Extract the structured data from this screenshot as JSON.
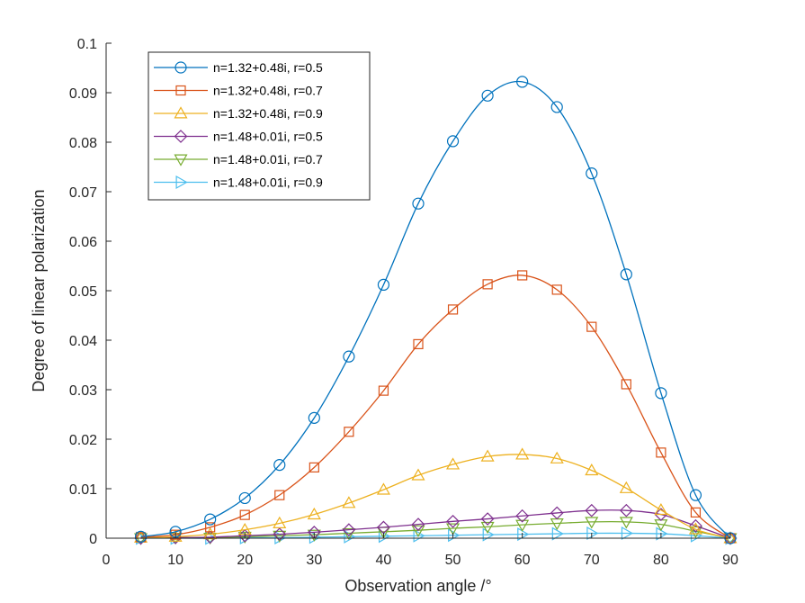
{
  "chart_data": {
    "type": "line",
    "xlabel": "Observation angle /°",
    "ylabel": "Degree of linear polarization",
    "xlim": [
      0,
      90
    ],
    "ylim": [
      0,
      0.1
    ],
    "xticks": [
      0,
      10,
      20,
      30,
      40,
      50,
      60,
      70,
      80,
      90
    ],
    "yticks": [
      0,
      0.01,
      0.02,
      0.03,
      0.04,
      0.05,
      0.06,
      0.07,
      0.08,
      0.09,
      0.1
    ],
    "xtick_labels": [
      "0",
      "10",
      "20",
      "30",
      "40",
      "50",
      "60",
      "70",
      "80",
      "90"
    ],
    "ytick_labels": [
      "0",
      "0.01",
      "0.02",
      "0.03",
      "0.04",
      "0.05",
      "0.06",
      "0.07",
      "0.08",
      "0.09",
      "0.1"
    ],
    "grid": false,
    "legend_position": "top-left",
    "x": [
      5,
      10,
      15,
      20,
      25,
      30,
      35,
      40,
      45,
      50,
      55,
      60,
      65,
      70,
      75,
      80,
      85,
      90
    ],
    "series": [
      {
        "name": "n=1.32+0.48i, r=0.5",
        "color": "#0072BD",
        "marker": "circle",
        "values": [
          0.0003,
          0.0013,
          0.0038,
          0.0081,
          0.0148,
          0.0243,
          0.0367,
          0.0512,
          0.0676,
          0.0802,
          0.0894,
          0.0922,
          0.0871,
          0.0737,
          0.0533,
          0.0293,
          0.0087,
          0.0
        ]
      },
      {
        "name": "n=1.32+0.48i, r=0.7",
        "color": "#D95319",
        "marker": "square",
        "values": [
          0.0002,
          0.0007,
          0.0022,
          0.0047,
          0.0087,
          0.0143,
          0.0215,
          0.0298,
          0.0392,
          0.0462,
          0.0513,
          0.0531,
          0.0502,
          0.0427,
          0.0311,
          0.0173,
          0.0052,
          0.0
        ]
      },
      {
        "name": "n=1.32+0.48i, r=0.9",
        "color": "#EDB120",
        "marker": "triangle-up",
        "values": [
          0.0001,
          0.0003,
          0.0008,
          0.0017,
          0.003,
          0.0048,
          0.0071,
          0.0098,
          0.0127,
          0.0149,
          0.0165,
          0.0169,
          0.0161,
          0.0137,
          0.0101,
          0.0057,
          0.0018,
          0.0
        ]
      },
      {
        "name": "n=1.48+0.01i, r=0.5",
        "color": "#7E2F8E",
        "marker": "diamond",
        "values": [
          0.0,
          0.0001,
          0.0002,
          0.0005,
          0.0008,
          0.0012,
          0.0017,
          0.0022,
          0.0028,
          0.0034,
          0.0039,
          0.0045,
          0.0051,
          0.0056,
          0.0056,
          0.0048,
          0.0025,
          0.0
        ]
      },
      {
        "name": "n=1.48+0.01i, r=0.7",
        "color": "#77AC30",
        "marker": "triangle-down",
        "values": [
          0.0,
          0.0001,
          0.0001,
          0.0003,
          0.0005,
          0.0007,
          0.001,
          0.0013,
          0.0016,
          0.002,
          0.0023,
          0.0027,
          0.003,
          0.0033,
          0.0033,
          0.0028,
          0.0014,
          0.0
        ]
      },
      {
        "name": "n=1.48+0.01i, r=0.9",
        "color": "#4DBEEE",
        "marker": "triangle-right",
        "values": [
          0.0,
          0.0,
          0.0,
          0.0001,
          0.0001,
          0.0002,
          0.0003,
          0.0004,
          0.0005,
          0.0006,
          0.0007,
          0.0008,
          0.0009,
          0.001,
          0.001,
          0.0009,
          0.0005,
          0.0
        ]
      }
    ]
  }
}
